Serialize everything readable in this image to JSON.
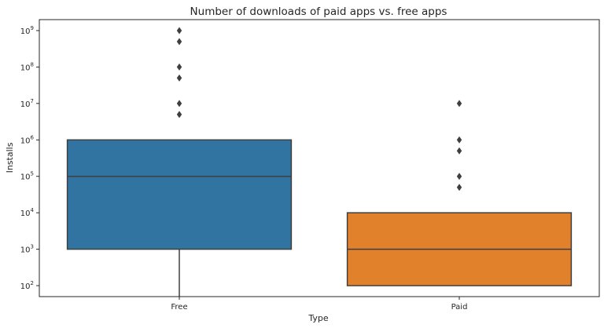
{
  "chart_data": {
    "type": "box",
    "title": "Number of downloads of paid apps vs. free apps",
    "xlabel": "Type",
    "ylabel": "Installs",
    "yscale": "log",
    "ylim": [
      50,
      2000000000
    ],
    "y_ticks": [
      {
        "value": 100,
        "base": "10",
        "exp": "2"
      },
      {
        "value": 1000,
        "base": "10",
        "exp": "3"
      },
      {
        "value": 10000,
        "base": "10",
        "exp": "4"
      },
      {
        "value": 100000,
        "base": "10",
        "exp": "5"
      },
      {
        "value": 1000000,
        "base": "10",
        "exp": "6"
      },
      {
        "value": 10000000,
        "base": "10",
        "exp": "7"
      },
      {
        "value": 100000000,
        "base": "10",
        "exp": "8"
      },
      {
        "value": 1000000000,
        "base": "10",
        "exp": "9"
      }
    ],
    "categories": [
      "Free",
      "Paid"
    ],
    "boxes": [
      {
        "category": "Free",
        "color": "#3274a1",
        "whisker_low": 50,
        "q1": 1000,
        "median": 100000,
        "q3": 1000000,
        "whisker_high": 1000000,
        "outliers": [
          1000000000,
          500000000,
          100000000,
          50000000,
          10000000,
          5000000
        ]
      },
      {
        "category": "Paid",
        "color": "#e1812c",
        "whisker_low": 100,
        "q1": 100,
        "median": 1000,
        "q3": 10000,
        "whisker_high": 10000,
        "outliers": [
          10000000,
          1000000,
          500000,
          100000,
          50000
        ]
      }
    ],
    "grid": false,
    "legend": "none"
  }
}
